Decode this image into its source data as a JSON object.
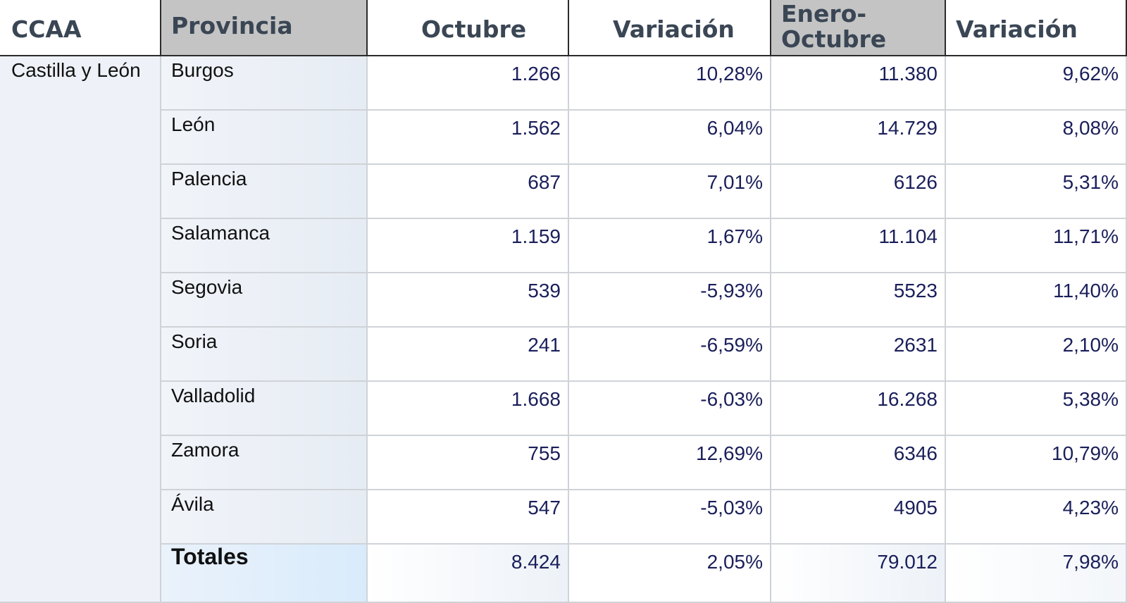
{
  "headers": {
    "ccaa": "CCAA",
    "provincia": "Provincia",
    "octubre": "Octubre",
    "variacion1": "Variación",
    "enero_octubre": "Enero-Octubre",
    "variacion2": "Variación"
  },
  "ccaa_value": "Castilla y León",
  "rows": [
    {
      "provincia": "Burgos",
      "octubre": "1.266",
      "variacion1": "10,28%",
      "enero_octubre": "11.380",
      "variacion2": "9,62%"
    },
    {
      "provincia": "León",
      "octubre": "1.562",
      "variacion1": "6,04%",
      "enero_octubre": "14.729",
      "variacion2": "8,08%"
    },
    {
      "provincia": "Palencia",
      "octubre": "687",
      "variacion1": "7,01%",
      "enero_octubre": "6126",
      "variacion2": "5,31%"
    },
    {
      "provincia": "Salamanca",
      "octubre": "1.159",
      "variacion1": "1,67%",
      "enero_octubre": "11.104",
      "variacion2": "11,71%"
    },
    {
      "provincia": "Segovia",
      "octubre": "539",
      "variacion1": "-5,93%",
      "enero_octubre": "5523",
      "variacion2": "11,40%"
    },
    {
      "provincia": "Soria",
      "octubre": "241",
      "variacion1": "-6,59%",
      "enero_octubre": "2631",
      "variacion2": "2,10%"
    },
    {
      "provincia": "Valladolid",
      "octubre": "1.668",
      "variacion1": "-6,03%",
      "enero_octubre": "16.268",
      "variacion2": "5,38%"
    },
    {
      "provincia": "Zamora",
      "octubre": "755",
      "variacion1": "12,69%",
      "enero_octubre": "6346",
      "variacion2": "10,79%"
    },
    {
      "provincia": "Ávila",
      "octubre": "547",
      "variacion1": "-5,03%",
      "enero_octubre": "4905",
      "variacion2": "4,23%"
    }
  ],
  "totals": {
    "provincia": "Totales",
    "octubre": "8.424",
    "variacion1": "2,05%",
    "enero_octubre": "79.012",
    "variacion2": "7,98%"
  },
  "colors": {
    "header_grey": "#c4c4c4",
    "header_text": "#3a4654",
    "number_text": "#1a1f5a",
    "provincia_bg": "#e9eef5",
    "ccaa_bg": "#eef2f8",
    "totals_bg": "#dcecfb"
  }
}
